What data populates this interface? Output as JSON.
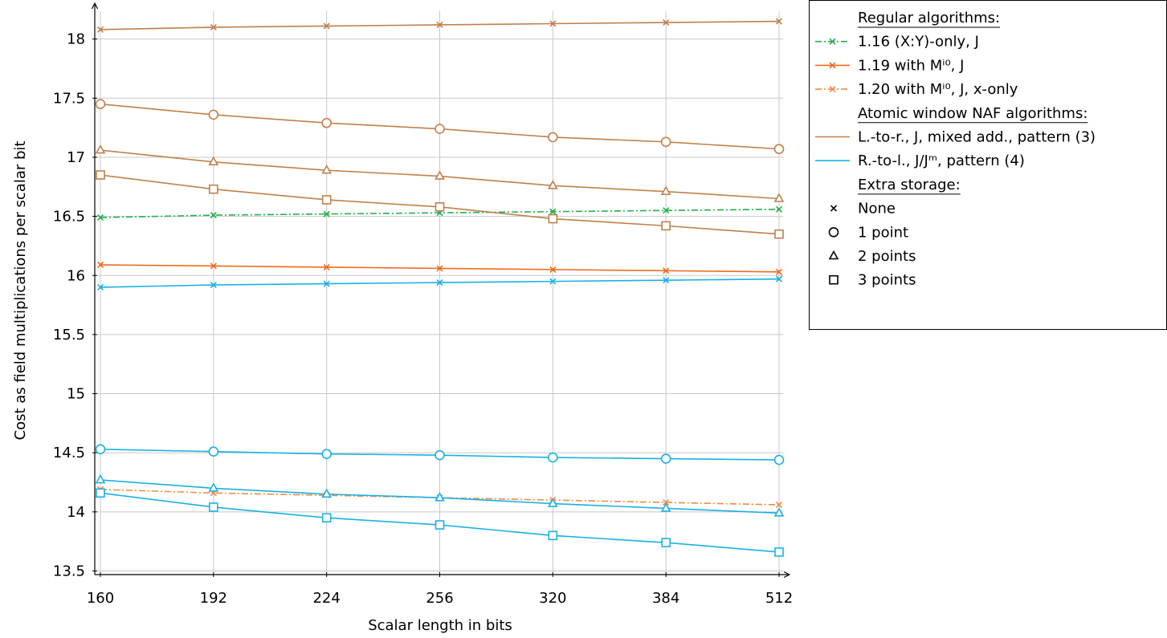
{
  "chart_data": {
    "type": "line",
    "xlabel": "Scalar length in bits",
    "ylabel": "Cost as field multiplications per scalar bit",
    "categories": [
      "160",
      "192",
      "224",
      "256",
      "320",
      "384",
      "512"
    ],
    "ylim": [
      13.5,
      18.2
    ],
    "yticks": [
      "13.5",
      "14",
      "14.5",
      "15",
      "15.5",
      "16",
      "16.5",
      "17",
      "17.5",
      "18"
    ],
    "grid": true,
    "legend_position": "right",
    "colors": {
      "brown": "#c0804a",
      "blue": "#1ab0e6",
      "green": "#22b14c",
      "orange": "#f26a1b",
      "orange_light": "#f58a3f"
    },
    "series": [
      {
        "name": "1.16 (X:Y)-only, J",
        "color": "#22b14c",
        "dash": "dashdot",
        "marker": "x",
        "values": [
          16.49,
          16.51,
          16.52,
          16.53,
          16.54,
          16.55,
          16.56
        ]
      },
      {
        "name": "1.19 with Mⁱ⁰, J",
        "color": "#f26a1b",
        "dash": "solid",
        "marker": "x",
        "values": [
          16.09,
          16.08,
          16.07,
          16.06,
          16.05,
          16.04,
          16.03
        ]
      },
      {
        "name": "1.20 with Mⁱ⁰, J, x-only",
        "color": "#f58a3f",
        "dash": "dashdot",
        "marker": "x",
        "values": [
          14.19,
          14.16,
          14.14,
          14.12,
          14.1,
          14.08,
          14.06
        ]
      },
      {
        "color": "#c0804a",
        "dash": "solid",
        "marker": "x",
        "values": [
          18.08,
          18.1,
          18.11,
          18.12,
          18.13,
          18.14,
          18.15
        ]
      },
      {
        "color": "#c0804a",
        "dash": "solid",
        "marker": "circle",
        "values": [
          17.45,
          17.36,
          17.29,
          17.24,
          17.17,
          17.13,
          17.07
        ]
      },
      {
        "color": "#c0804a",
        "dash": "solid",
        "marker": "triangle",
        "values": [
          17.06,
          16.96,
          16.89,
          16.84,
          16.76,
          16.71,
          16.65
        ]
      },
      {
        "color": "#c0804a",
        "dash": "solid",
        "marker": "square",
        "values": [
          16.85,
          16.73,
          16.64,
          16.58,
          16.48,
          16.42,
          16.35
        ]
      },
      {
        "color": "#1ab0e6",
        "dash": "solid",
        "marker": "x",
        "values": [
          15.9,
          15.92,
          15.93,
          15.94,
          15.95,
          15.96,
          15.97
        ]
      },
      {
        "color": "#1ab0e6",
        "dash": "solid",
        "marker": "circle",
        "values": [
          14.53,
          14.51,
          14.49,
          14.48,
          14.46,
          14.45,
          14.44
        ]
      },
      {
        "color": "#1ab0e6",
        "dash": "solid",
        "marker": "triangle",
        "values": [
          14.27,
          14.2,
          14.15,
          14.12,
          14.07,
          14.03,
          13.99
        ]
      },
      {
        "color": "#1ab0e6",
        "dash": "solid",
        "marker": "square",
        "values": [
          14.16,
          14.04,
          13.95,
          13.89,
          13.8,
          13.74,
          13.66
        ]
      }
    ],
    "legend": {
      "heading_regular": "Regular algorithms:",
      "heading_atomic": "Atomic window NAF algorithms:",
      "heading_storage": "Extra storage:",
      "entries": [
        {
          "label": "1.16 (X:Y)-only, J",
          "color": "#22b14c",
          "dash": "dashdot",
          "marker": "x"
        },
        {
          "label": "1.19 with Mⁱ⁰, J",
          "color": "#f26a1b",
          "dash": "solid",
          "marker": "x"
        },
        {
          "label": "1.20 with Mⁱ⁰, J, x-only",
          "color": "#f58a3f",
          "dash": "dashdot",
          "marker": "x"
        },
        {
          "label": "L.-to-r., J, mixed add., pattern (3)",
          "color": "#c0804a",
          "dash": "solid",
          "marker": "none"
        },
        {
          "label": "R.-to-l., J/Jᵐ, pattern (4)",
          "color": "#1ab0e6",
          "dash": "solid",
          "marker": "none"
        }
      ],
      "storage": [
        {
          "label": "None",
          "marker": "x"
        },
        {
          "label": "1 point",
          "marker": "circle"
        },
        {
          "label": "2 points",
          "marker": "triangle"
        },
        {
          "label": "3 points",
          "marker": "square"
        }
      ]
    }
  }
}
